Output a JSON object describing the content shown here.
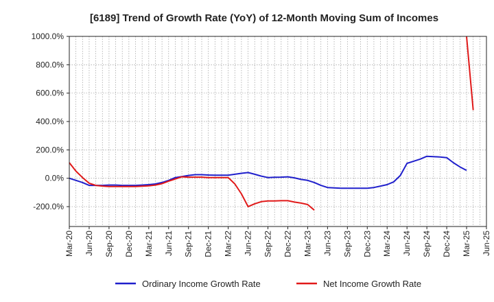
{
  "chart_data": {
    "type": "line",
    "title": "[6189]  Trend of Growth Rate (YoY) of 12-Month Moving Sum of Incomes",
    "xlabel": "",
    "ylabel": "",
    "ylim": [
      -340,
      1000
    ],
    "y_ticks": [
      -200,
      0,
      200,
      400,
      600,
      800,
      1000
    ],
    "y_tick_labels": [
      "-200.0%",
      "0.0%",
      "200.0%",
      "400.0%",
      "600.0%",
      "800.0%",
      "1000.0%"
    ],
    "x_tick_labels": [
      "Mar-20",
      "Jun-20",
      "Sep-20",
      "Dec-20",
      "Mar-21",
      "Jun-21",
      "Sep-21",
      "Dec-21",
      "Mar-22",
      "Jun-22",
      "Sep-22",
      "Dec-22",
      "Mar-23",
      "Jun-23",
      "Sep-23",
      "Dec-23",
      "Mar-24",
      "Jun-24",
      "Sep-24",
      "Dec-24",
      "Mar-25",
      "Jun-25"
    ],
    "grid": true,
    "legend_position": "bottom",
    "months": [
      "Mar-20",
      "Apr-20",
      "May-20",
      "Jun-20",
      "Jul-20",
      "Aug-20",
      "Sep-20",
      "Oct-20",
      "Nov-20",
      "Dec-20",
      "Jan-21",
      "Feb-21",
      "Mar-21",
      "Apr-21",
      "May-21",
      "Jun-21",
      "Jul-21",
      "Aug-21",
      "Sep-21",
      "Oct-21",
      "Nov-21",
      "Dec-21",
      "Jan-22",
      "Feb-22",
      "Mar-22",
      "Apr-22",
      "May-22",
      "Jun-22",
      "Jul-22",
      "Aug-22",
      "Sep-22",
      "Oct-22",
      "Nov-22",
      "Dec-22",
      "Jan-23",
      "Feb-23",
      "Mar-23",
      "Apr-23",
      "May-23",
      "Jun-23",
      "Jul-23",
      "Aug-23",
      "Sep-23",
      "Oct-23",
      "Nov-23",
      "Dec-23",
      "Jan-24",
      "Feb-24",
      "Mar-24",
      "Apr-24",
      "May-24",
      "Jun-24",
      "Jul-24",
      "Aug-24",
      "Sep-24",
      "Oct-24",
      "Nov-24",
      "Dec-24",
      "Jan-25",
      "Feb-25",
      "Mar-25",
      "Apr-25",
      "May-25",
      "Jun-25"
    ],
    "series": [
      {
        "name": "Ordinary Income Growth Rate",
        "color": "#1f1fcc",
        "values": [
          0,
          -15,
          -30,
          -50,
          -50,
          -50,
          -48,
          -48,
          -50,
          -50,
          -50,
          -48,
          -45,
          -40,
          -30,
          -15,
          5,
          12,
          20,
          25,
          25,
          23,
          22,
          22,
          22,
          28,
          35,
          40,
          28,
          15,
          5,
          7,
          8,
          10,
          3,
          -8,
          -15,
          -30,
          -50,
          -65,
          -68,
          -70,
          -70,
          -70,
          -70,
          -70,
          -65,
          -55,
          -45,
          -25,
          20,
          105,
          120,
          135,
          155,
          152,
          150,
          145,
          110,
          80,
          55,
          null,
          null,
          null
        ]
      },
      {
        "name": "Net Income Growth Rate",
        "color": "#e11919",
        "values": [
          110,
          50,
          5,
          -35,
          -50,
          -55,
          -58,
          -58,
          -58,
          -58,
          -58,
          -56,
          -53,
          -48,
          -38,
          -20,
          -5,
          10,
          8,
          8,
          8,
          5,
          5,
          5,
          5,
          -40,
          -110,
          -200,
          -180,
          -165,
          -160,
          -160,
          -158,
          -158,
          -168,
          -175,
          -185,
          -225,
          null,
          null,
          null,
          null,
          null,
          null,
          null,
          null,
          null,
          null,
          null,
          null,
          null,
          null,
          null,
          null,
          null,
          null,
          null,
          null,
          null,
          null,
          1000,
          480,
          null,
          null
        ]
      }
    ]
  }
}
